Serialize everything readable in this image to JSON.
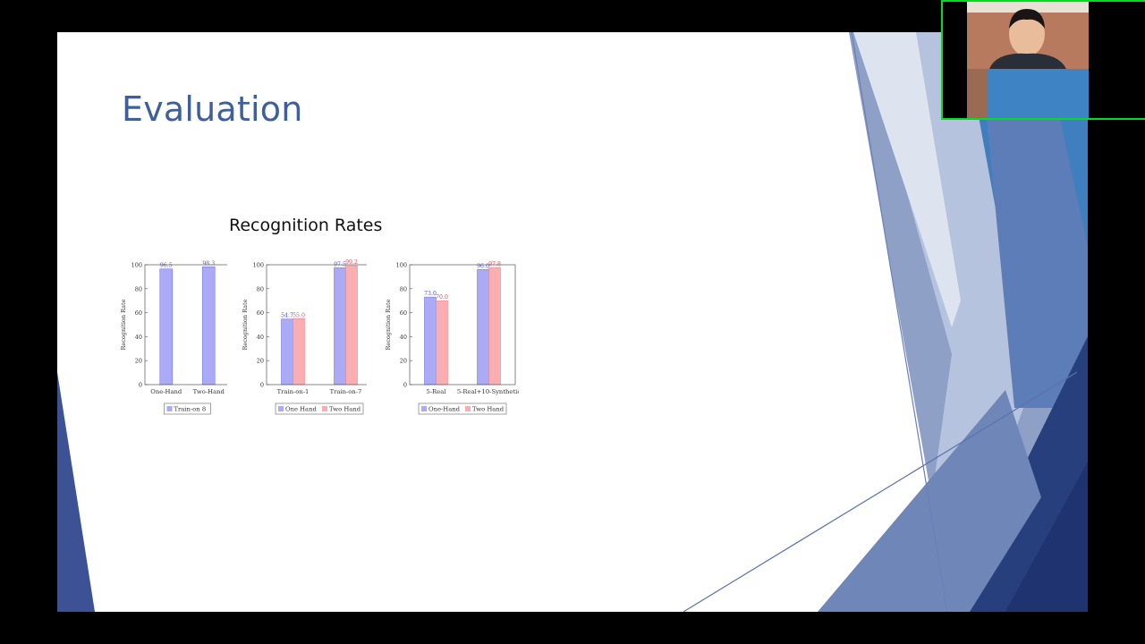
{
  "slide": {
    "title": "Evaluation",
    "heading": "Recognition Rates"
  },
  "colors": {
    "title": "#3f5f9c",
    "one_hand": "#aaaaf5",
    "two_hand": "#f9aeb2",
    "one_hand_label": "#4a4ae0",
    "two_hand_label": "#e04a58",
    "webcam_border": "#00dd22"
  },
  "chart_data": [
    {
      "type": "bar",
      "ylabel": "Recognition Rate",
      "ylim": [
        0,
        100
      ],
      "yticks": [
        "0",
        "20",
        "40",
        "60",
        "80",
        "100"
      ],
      "categories": [
        "One-Hand",
        "Two-Hand"
      ],
      "series": [
        {
          "name": "Train-on 8",
          "values": [
            96.5,
            98.3
          ],
          "labels": [
            "96.5",
            "98.3"
          ]
        }
      ],
      "legend": "bottom"
    },
    {
      "type": "bar",
      "ylabel": "Recognition Rate",
      "ylim": [
        0,
        100
      ],
      "yticks": [
        "0",
        "20",
        "40",
        "60",
        "80",
        "100"
      ],
      "categories": [
        "Train-on-1",
        "Train-on-7"
      ],
      "series": [
        {
          "name": "One Hand",
          "values": [
            54.7,
            97.5
          ],
          "labels": [
            "54.7",
            "97.5"
          ]
        },
        {
          "name": "Two Hand",
          "values": [
            55.0,
            99.2
          ],
          "labels": [
            "55.0",
            "99.2"
          ]
        }
      ],
      "legend": "bottom"
    },
    {
      "type": "bar",
      "ylabel": "Recognition Rate",
      "ylim": [
        0,
        100
      ],
      "yticks": [
        "0",
        "20",
        "40",
        "60",
        "80",
        "100"
      ],
      "categories": [
        "5-Real",
        "5-Real+10-Synthetic"
      ],
      "series": [
        {
          "name": "One-Hand",
          "values": [
            73.0,
            96.0
          ],
          "labels": [
            "73.0",
            "96.0"
          ]
        },
        {
          "name": "Two Hand",
          "values": [
            70.0,
            97.8
          ],
          "labels": [
            "70.0",
            "97.8"
          ]
        }
      ],
      "legend": "bottom"
    }
  ]
}
